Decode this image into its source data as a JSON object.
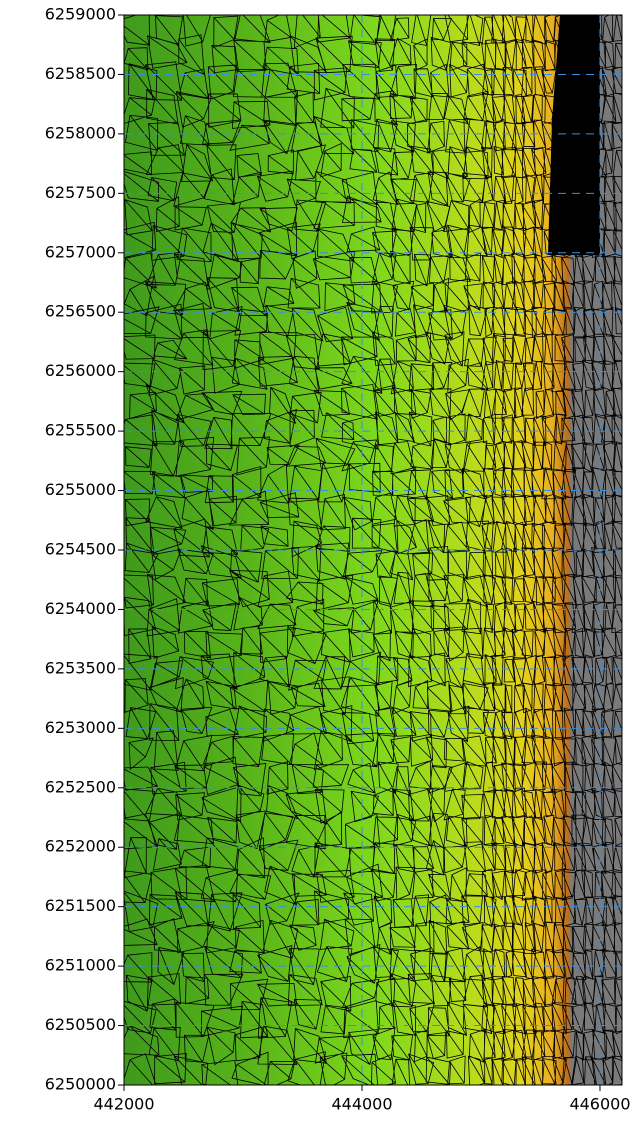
{
  "chart_data": {
    "type": "mesh",
    "xlim": [
      442000,
      446185
    ],
    "ylim": [
      6250000,
      6259000
    ],
    "xticks": [
      442000,
      444000,
      446000
    ],
    "yticks": [
      6250000,
      6250500,
      6251000,
      6251500,
      6252000,
      6252500,
      6253000,
      6253500,
      6254000,
      6254500,
      6255000,
      6255500,
      6256000,
      6256500,
      6257000,
      6257500,
      6258000,
      6258500,
      6259000
    ],
    "grid": true,
    "grid_color": "#3a8ee0"
  }
}
